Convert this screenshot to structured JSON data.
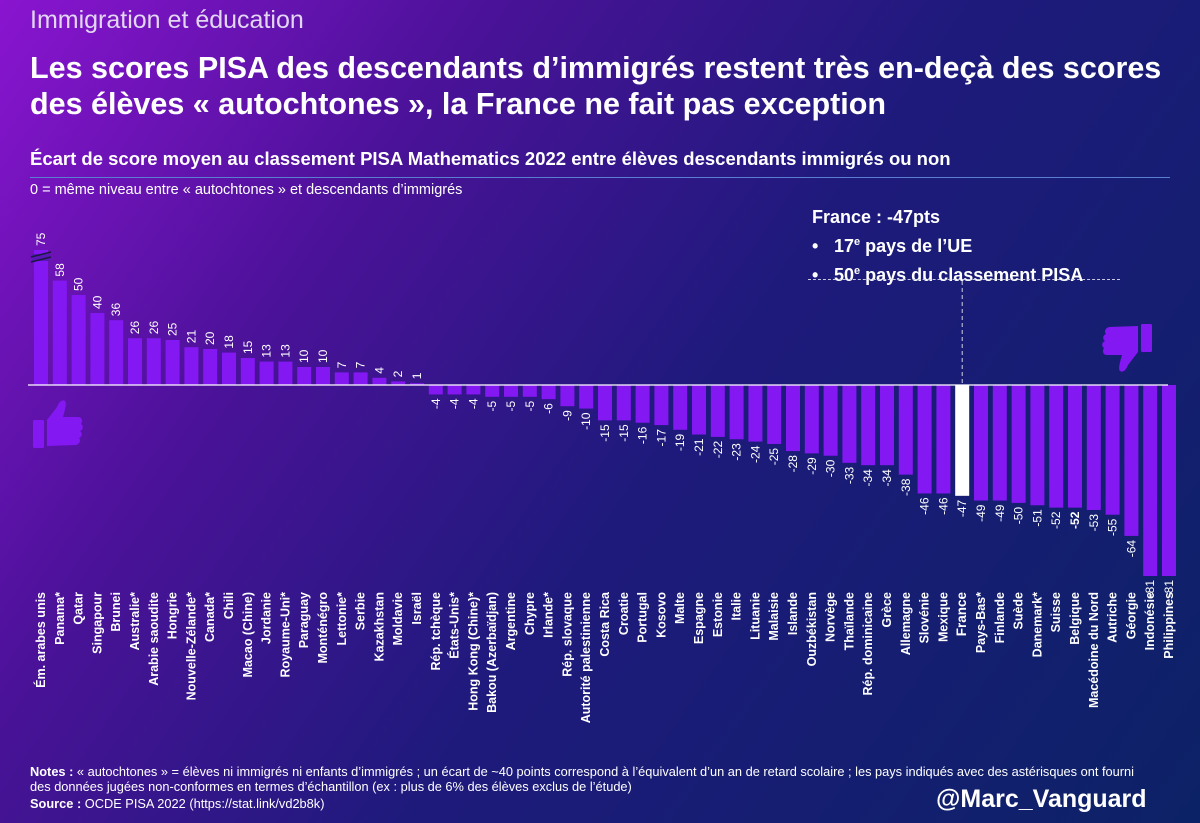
{
  "header": {
    "kicker": "Immigration et éducation",
    "title": "Les scores PISA des descendants d’immigrés restent très en-deçà des scores des élèves « autochtones », la France ne fait pas exception",
    "subtitle": "Écart de score moyen au classement PISA Mathematics 2022 entre élèves descendants immigrés ou non",
    "zero_note": "0 = même niveau entre « autochtones » et descendants d’immigrés"
  },
  "callout": {
    "title": "France : -47pts",
    "line1_num": "17",
    "line1_sup": "e",
    "line1_text": " pays de l’UE",
    "line2_num": "50",
    "line2_sup": "e",
    "line2_text": " pays du classement PISA"
  },
  "icons": {
    "good": "thumbs-up-icon",
    "bad": "thumbs-down-icon"
  },
  "colors": {
    "bar": "#8418f2",
    "highlight": "#ffffff"
  },
  "footer": {
    "notes_label": "Notes :",
    "notes_text": " « autochtones » = élèves ni immigrés ni enfants d’immigrés ; un écart de ~40 points correspond à l’équivalent d’un an de retard scolaire ; les pays indiqués avec des astérisques ont fourni des données jugées non-conformes en termes d’échantillon (ex : plus de 6% des élèves exclus de l’étude)",
    "source_label": "Source :",
    "source_text": " OCDE PISA 2022 (https://stat.link/vd2b8k)",
    "handle": "@Marc_Vanguard"
  },
  "chart_data": {
    "type": "bar",
    "title": "Écart de score moyen au classement PISA Mathematics 2022 entre élèves descendants immigrés ou non",
    "xlabel": "",
    "ylabel": "",
    "ylim": [
      -81,
      75
    ],
    "highlight": "France",
    "bold_value_label": "Belgique",
    "broken_bar": "Ém. arabes unis",
    "categories": [
      "Ém. arabes unis",
      "Panama*",
      "Qatar",
      "Singapour",
      "Brunei",
      "Australie*",
      "Arabie saoudite",
      "Hongrie",
      "Nouvelle-Zélande*",
      "Canada*",
      "Chili",
      "Macao (Chine)",
      "Jordanie",
      "Royaume-Uni*",
      "Paraguay",
      "Monténégro",
      "Lettonie*",
      "Serbie",
      "Kazakhstan",
      "Moldavie",
      "Israël",
      "Rép. tchèque",
      "États-Unis*",
      "Hong Kong (Chine)*",
      "Bakou (Azerbaïdjan)",
      "Argentine",
      "Chypre",
      "Irlande*",
      "Rép. slovaque",
      "Autorité palestinienne",
      "Costa Rica",
      "Croatie",
      "Portugal",
      "Kosovo",
      "Malte",
      "Espagne",
      "Estonie",
      "Italie",
      "Lituanie",
      "Malaisie",
      "Islande",
      "Ouzbékistan",
      "Norvège",
      "Thaïlande",
      "Rép. dominicaine",
      "Grèce",
      "Allemagne",
      "Slovénie",
      "Mexique",
      "France",
      "Pays-Bas*",
      "Finlande",
      "Suède",
      "Danemark*",
      "Suisse",
      "Belgique",
      "Macédoine du Nord",
      "Autriche",
      "Géorgie",
      "Indonésie",
      "Philippines"
    ],
    "values": [
      75,
      58,
      50,
      40,
      36,
      26,
      26,
      25,
      21,
      20,
      18,
      15,
      13,
      13,
      10,
      10,
      7,
      7,
      4,
      2,
      1,
      -4,
      -4,
      -4,
      -5,
      -5,
      -5,
      -6,
      -9,
      -10,
      -15,
      -15,
      -16,
      -17,
      -19,
      -21,
      -22,
      -23,
      -24,
      -25,
      -28,
      -29,
      -30,
      -33,
      -34,
      -34,
      -38,
      -46,
      -46,
      -47,
      -49,
      -49,
      -50,
      -51,
      -52,
      -52,
      -53,
      -55,
      -64,
      -81,
      -81
    ]
  }
}
